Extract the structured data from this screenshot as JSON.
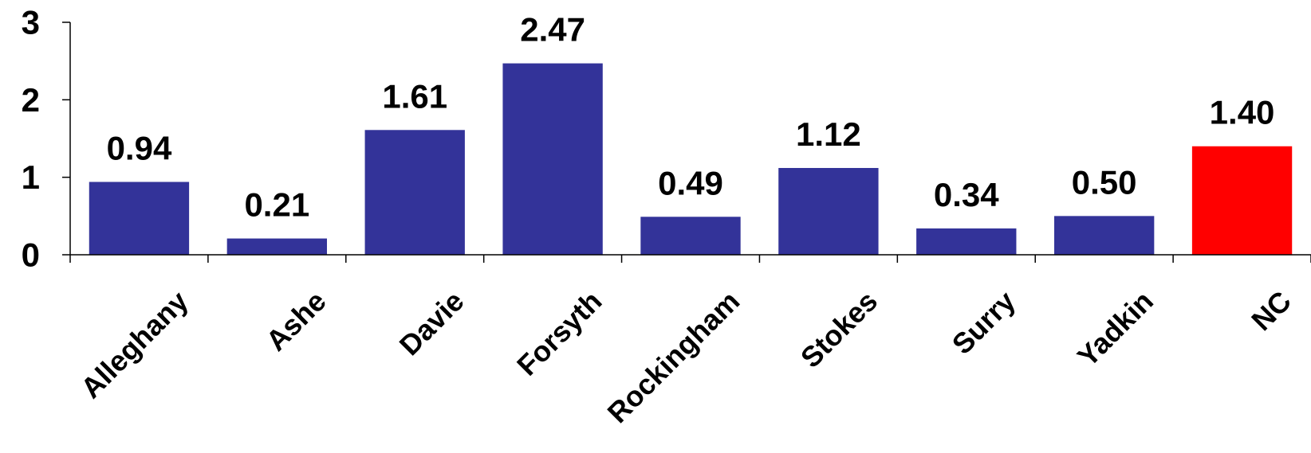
{
  "chart_data": {
    "type": "bar",
    "categories": [
      "Alleghany",
      "Ashe",
      "Davie",
      "Forsyth",
      "Rockingham",
      "Stokes",
      "Surry",
      "Yadkin",
      "NC"
    ],
    "values": [
      0.94,
      0.21,
      1.61,
      2.47,
      0.49,
      1.12,
      0.34,
      0.5,
      1.4
    ],
    "value_labels": [
      "0.94",
      "0.21",
      "1.61",
      "2.47",
      "0.49",
      "1.12",
      "0.34",
      "0.50",
      "1.40"
    ],
    "bar_colors": [
      "#333399",
      "#333399",
      "#333399",
      "#333399",
      "#333399",
      "#333399",
      "#333399",
      "#333399",
      "#ff0000"
    ],
    "yticks": [
      0,
      1,
      2,
      3
    ],
    "ytick_labels": [
      "0",
      "1",
      "2",
      "3"
    ],
    "ylim": [
      0,
      3
    ],
    "grid": false,
    "legend": "none"
  }
}
